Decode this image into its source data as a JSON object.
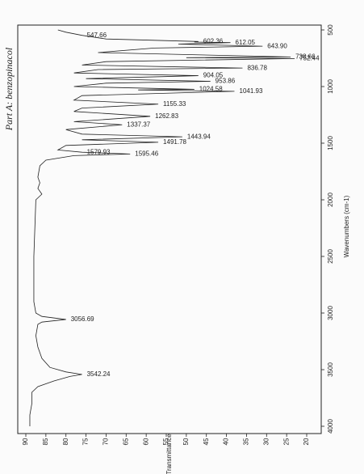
{
  "chart_data": {
    "type": "line",
    "note": "Part A: benzopinacol",
    "x_label": "Wavenumbers (cm-1)",
    "y_label": "%Transmittance",
    "xlim": [
      4000,
      500
    ],
    "xticks": [
      4000,
      3500,
      3000,
      2500,
      2000,
      1500,
      1000,
      500
    ],
    "ylim": [
      20,
      90
    ],
    "yticks": [
      20,
      25,
      30,
      35,
      40,
      45,
      50,
      55,
      60,
      65,
      70,
      75,
      80,
      85,
      90
    ],
    "series": [
      {
        "color": "#222222",
        "x": [
          4000,
          3900,
          3800,
          3700,
          3650,
          3600,
          3560,
          3542.24,
          3520,
          3480,
          3400,
          3300,
          3200,
          3100,
          3080,
          3056.69,
          3030,
          3000,
          2900,
          2500,
          2000,
          1950,
          1900,
          1850,
          1800,
          1700,
          1650,
          1610,
          1595.46,
          1585,
          1579.93,
          1560,
          1520,
          1491.78,
          1470,
          1443.94,
          1420,
          1380,
          1337.37,
          1310,
          1262.83,
          1220,
          1190,
          1155.33,
          1120,
          1080,
          1041.93,
          1030,
          1024.58,
          1000,
          970,
          953.86,
          930,
          904.05,
          880,
          850,
          836.78,
          810,
          780,
          752.44,
          745,
          738.66,
          700,
          660,
          643.9,
          625,
          612.05,
          607,
          602.36,
          580,
          547.66,
          520,
          500
        ],
        "values": [
          89,
          89,
          88.5,
          88.5,
          87,
          83,
          79,
          76,
          80,
          84,
          86,
          87,
          87.5,
          87,
          86,
          80,
          86,
          87.5,
          88,
          88,
          87.5,
          86,
          87,
          86.5,
          87,
          86.5,
          85,
          78,
          64,
          72,
          76,
          82,
          80,
          57,
          76,
          51,
          76,
          80,
          66,
          78,
          59,
          78,
          76,
          57,
          78,
          76,
          38,
          62,
          48,
          78,
          70,
          44,
          75,
          47,
          78,
          72,
          36,
          76,
          70,
          23,
          50,
          24,
          72,
          58,
          31,
          52,
          39,
          48,
          47,
          70,
          76,
          80,
          82
        ]
      }
    ],
    "peaks": [
      {
        "x": 547.66,
        "label": "547.66"
      },
      {
        "x": 602.36,
        "label": "602.36"
      },
      {
        "x": 612.05,
        "label": "612.05"
      },
      {
        "x": 643.9,
        "label": "643.90"
      },
      {
        "x": 738.66,
        "label": "738.66"
      },
      {
        "x": 752.44,
        "label": "752.44"
      },
      {
        "x": 836.78,
        "label": "836.78"
      },
      {
        "x": 904.05,
        "label": "904.05"
      },
      {
        "x": 953.86,
        "label": "953.86"
      },
      {
        "x": 1024.58,
        "label": "1024.58"
      },
      {
        "x": 1041.93,
        "label": "1041.93"
      },
      {
        "x": 1155.33,
        "label": "1155.33"
      },
      {
        "x": 1262.83,
        "label": "1262.83"
      },
      {
        "x": 1337.37,
        "label": "1337.37"
      },
      {
        "x": 1443.94,
        "label": "1443.94"
      },
      {
        "x": 1491.78,
        "label": "1491.78"
      },
      {
        "x": 1579.93,
        "label": "1579.93"
      },
      {
        "x": 1595.46,
        "label": "1595.46"
      },
      {
        "x": 3056.69,
        "label": "3056.69"
      },
      {
        "x": 3542.24,
        "label": "3542.24"
      }
    ]
  }
}
